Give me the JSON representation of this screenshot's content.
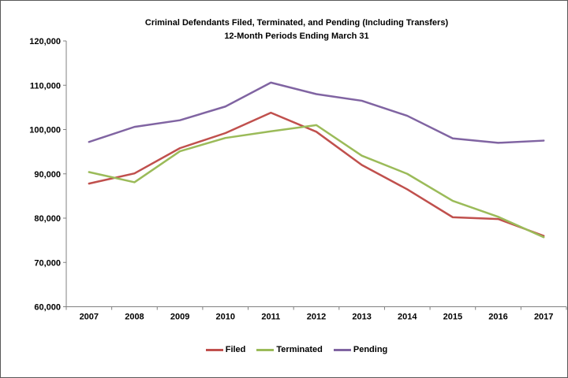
{
  "chart_data": {
    "type": "line",
    "title": "Criminal Defendants Filed, Terminated, and Pending (Including Transfers)",
    "subtitle": "12-Month Periods Ending March 31",
    "categories": [
      "2007",
      "2008",
      "2009",
      "2010",
      "2011",
      "2012",
      "2013",
      "2014",
      "2015",
      "2016",
      "2017"
    ],
    "series": [
      {
        "name": "Filed",
        "color": "#C0504D",
        "values": [
          87800,
          90100,
          95800,
          99200,
          103800,
          99500,
          92000,
          86500,
          80200,
          79800,
          76000
        ]
      },
      {
        "name": "Terminated",
        "color": "#9BBB59",
        "values": [
          90400,
          88100,
          95100,
          98100,
          99600,
          101000,
          94100,
          90000,
          83900,
          80300,
          75700
        ]
      },
      {
        "name": "Pending",
        "color": "#8064A2",
        "values": [
          97200,
          100600,
          102100,
          105200,
          110600,
          108000,
          106500,
          103100,
          98000,
          97000,
          97500
        ]
      }
    ],
    "y_axis": {
      "min": 60000,
      "max": 120000,
      "tick_interval": 10000,
      "ticks": [
        {
          "value": 60000,
          "label": "60,000"
        },
        {
          "value": 70000,
          "label": "70,000"
        },
        {
          "value": 80000,
          "label": "80,000"
        },
        {
          "value": 90000,
          "label": "90,000"
        },
        {
          "value": 100000,
          "label": "100,000"
        },
        {
          "value": 110000,
          "label": "110,000"
        },
        {
          "value": 120000,
          "label": "120,000"
        }
      ]
    },
    "legend_position": "bottom",
    "grid": false,
    "axis_color": "#808080",
    "border_color": "#595959",
    "text_color": "#000000"
  }
}
